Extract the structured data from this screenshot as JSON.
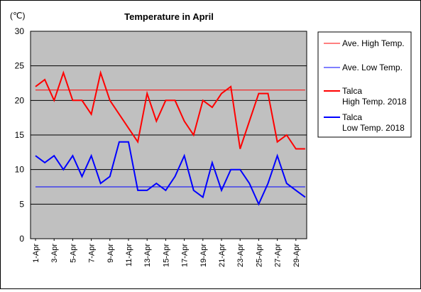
{
  "chart_data": {
    "type": "line",
    "title": "Temperature in April",
    "unit_label": "(℃)",
    "x": [
      "1-Apr",
      "2-Apr",
      "3-Apr",
      "4-Apr",
      "5-Apr",
      "6-Apr",
      "7-Apr",
      "8-Apr",
      "9-Apr",
      "10-Apr",
      "11-Apr",
      "12-Apr",
      "13-Apr",
      "14-Apr",
      "15-Apr",
      "16-Apr",
      "17-Apr",
      "18-Apr",
      "19-Apr",
      "20-Apr",
      "21-Apr",
      "22-Apr",
      "23-Apr",
      "24-Apr",
      "25-Apr",
      "26-Apr",
      "27-Apr",
      "28-Apr",
      "29-Apr",
      "30-Apr"
    ],
    "x_tick_labels": [
      "1-Apr",
      "3-Apr",
      "5-Apr",
      "7-Apr",
      "9-Apr",
      "11-Apr",
      "13-Apr",
      "15-Apr",
      "17-Apr",
      "19-Apr",
      "21-Apr",
      "23-Apr",
      "25-Apr",
      "27-Apr",
      "29-Apr"
    ],
    "ylim": [
      0,
      30
    ],
    "y_ticks": [
      0,
      5,
      10,
      15,
      20,
      25,
      30
    ],
    "grid": "horizontal",
    "legend_position": "right",
    "plot_background": "#c0c0c0",
    "series": [
      {
        "name": "Ave. High Temp.",
        "color": "#ff0000",
        "width": 1,
        "values": [
          21.5,
          21.5,
          21.5,
          21.5,
          21.5,
          21.5,
          21.5,
          21.5,
          21.5,
          21.5,
          21.5,
          21.5,
          21.5,
          21.5,
          21.5,
          21.5,
          21.5,
          21.5,
          21.5,
          21.5,
          21.5,
          21.5,
          21.5,
          21.5,
          21.5,
          21.5,
          21.5,
          21.5,
          21.5,
          21.5
        ]
      },
      {
        "name": "Ave. Low Temp.",
        "color": "#0000ff",
        "width": 1,
        "values": [
          7.5,
          7.5,
          7.5,
          7.5,
          7.5,
          7.5,
          7.5,
          7.5,
          7.5,
          7.5,
          7.5,
          7.5,
          7.5,
          7.5,
          7.5,
          7.5,
          7.5,
          7.5,
          7.5,
          7.5,
          7.5,
          7.5,
          7.5,
          7.5,
          7.5,
          7.5,
          7.5,
          7.5,
          7.5,
          7.5
        ]
      },
      {
        "name": "Talca\nHigh Temp. 2018",
        "color": "#ff0000",
        "width": 2,
        "values": [
          22,
          23,
          20,
          24,
          20,
          20,
          18,
          24,
          20,
          18,
          16,
          14,
          21,
          17,
          20,
          20,
          17,
          15,
          20,
          19,
          21,
          22,
          13,
          17,
          21,
          21,
          14,
          15,
          13,
          13
        ]
      },
      {
        "name": "Talca\nLow Temp. 2018",
        "color": "#0000ff",
        "width": 2,
        "values": [
          12,
          11,
          12,
          10,
          12,
          9,
          12,
          8,
          9,
          14,
          14,
          7,
          7,
          8,
          7,
          9,
          12,
          7,
          6,
          11,
          7,
          10,
          10,
          8,
          5,
          8,
          12,
          8,
          7,
          6
        ]
      }
    ]
  }
}
